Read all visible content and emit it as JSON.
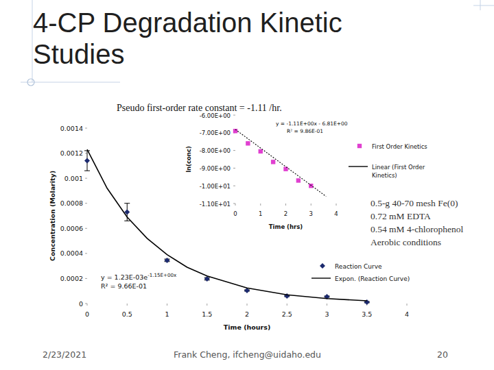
{
  "slide": {
    "title": "4-CP Degradation Kinetic Studies",
    "subtitle": "Pseudo first-order rate constant = -1.11 /hr.",
    "notes": [
      "0.5-g 40-70 mesh Fe(0)",
      "0.72 mM EDTA",
      "0.54 mM 4-chlorophenol",
      "Aerobic conditions"
    ],
    "footer": {
      "date": "2/23/2021",
      "author": "Frank Cheng, ifcheng@uidaho.edu",
      "page": "20"
    }
  },
  "chart_data": [
    {
      "type": "scatter",
      "x_label": "Time (hours)",
      "y_label": "Concentration (Molarity)",
      "series": [
        {
          "name": "Reaction Curve",
          "type": "scatter",
          "color": "#1c2a6e",
          "marker": "diamond",
          "x": [
            0,
            0.5,
            1,
            1.5,
            2,
            2.5,
            3,
            3.5
          ],
          "values": [
            0.00114,
            0.00073,
            0.000345,
            0.000197,
            0.000104,
            6e-05,
            5.5e-05,
            1.1e-05
          ],
          "errors": [
            8e-05,
            7e-05,
            1e-05,
            1e-05,
            5e-06,
            5e-06,
            5e-06,
            5e-06
          ]
        },
        {
          "name": "Expon. (Reaction Curve)",
          "type": "line",
          "color": "#000000",
          "line_style": "solid",
          "x": [
            0,
            0.25,
            0.5,
            0.75,
            1,
            1.25,
            1.5,
            2,
            2.5,
            3,
            3.5
          ],
          "values": [
            0.00123,
            0.00092,
            0.00069,
            0.00052,
            0.00039,
            0.00029,
            0.00022,
            0.000124,
            7e-05,
            4e-05,
            2.2e-05
          ]
        }
      ],
      "xlim": [
        0,
        4
      ],
      "xticks": [
        0,
        0.5,
        1,
        1.5,
        2,
        2.5,
        3,
        3.5,
        4
      ],
      "ylim": [
        0,
        0.0014
      ],
      "yticks": [
        0,
        0.0002,
        0.0004,
        0.0006,
        0.0008,
        0.001,
        0.0012,
        0.0014
      ],
      "grid": false,
      "legend": "lower right",
      "equation": {
        "base": "y = 1.23E-03e",
        "exponent": "-1.15E+00x"
      },
      "r_squared": "R² = 9.66E-01"
    },
    {
      "type": "scatter",
      "x_label": "Time (hrs)",
      "y_label": "ln(conc)",
      "series": [
        {
          "name": "First Order Kinetics",
          "type": "scatter",
          "color": "#e040d0",
          "marker": "square",
          "x": [
            0,
            0.5,
            1,
            1.5,
            2,
            2.5,
            3
          ],
          "values": [
            -6.9,
            -7.6,
            -8.05,
            -8.65,
            -9.05,
            -9.7,
            -10.0
          ]
        },
        {
          "name": "Linear (First Order Kinetics)",
          "type": "line",
          "color": "#000000",
          "line_style": "dotted",
          "x": [
            0,
            3.6
          ],
          "values": [
            -6.81,
            -10.6
          ]
        }
      ],
      "xlim": [
        0,
        4
      ],
      "xticks": [
        0,
        1,
        2,
        3,
        4
      ],
      "ylim": [
        -11,
        -6
      ],
      "yticks": [
        {
          "value": -11,
          "label": "-1.10E+01"
        },
        {
          "value": -10,
          "label": "-1.00E+01"
        },
        {
          "value": -9,
          "label": "-9.00E+00"
        },
        {
          "value": -8,
          "label": "-8.00E+00"
        },
        {
          "value": -7,
          "label": "-7.00E+00"
        },
        {
          "value": -6,
          "label": "-6.00E+00"
        }
      ],
      "grid": false,
      "legend": "right",
      "equation": "y = -1.11E+00x - 6.81E+00",
      "r_squared": "R² = 9.86E-01"
    }
  ]
}
